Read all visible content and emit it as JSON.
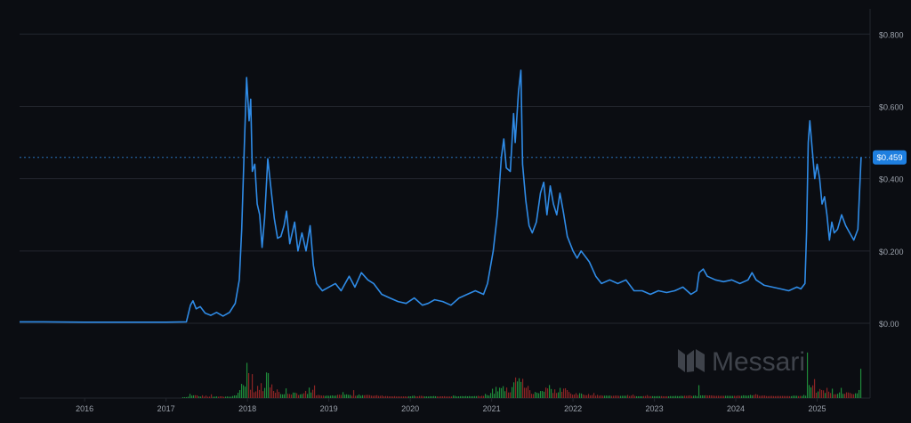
{
  "colors": {
    "background": "#0b0d12",
    "grid": "#23262e",
    "axis_text": "#9aa0aa",
    "line": "#2f8be6",
    "price_badge": "#1e7fe0",
    "volume_up": "#1f8a3a",
    "volume_down": "#8a2424",
    "watermark": "#3f434b"
  },
  "watermark": {
    "text": "Messari",
    "icon": "messari-logo-icon"
  },
  "chart_data": {
    "type": "line",
    "x_ticks": [
      "2016",
      "2017",
      "2018",
      "2019",
      "2020",
      "2021",
      "2022",
      "2023",
      "2024",
      "2025"
    ],
    "y_ticks": [
      "$0.00",
      "$0.200",
      "$0.400",
      "$0.600",
      "$0.800"
    ],
    "y_tick_values": [
      0,
      0.2,
      0.4,
      0.6,
      0.8
    ],
    "ylim": [
      0,
      0.85
    ],
    "xlim": [
      2015.2,
      2025.65
    ],
    "grid": true,
    "current_price": {
      "label": "$0.459",
      "value": 0.459
    },
    "series": [
      {
        "values": [
          [
            2015.2,
            0.004
          ],
          [
            2015.5,
            0.004
          ],
          [
            2016.0,
            0.003
          ],
          [
            2016.5,
            0.003
          ],
          [
            2017.0,
            0.003
          ],
          [
            2017.25,
            0.004
          ],
          [
            2017.3,
            0.05
          ],
          [
            2017.33,
            0.062
          ],
          [
            2017.37,
            0.04
          ],
          [
            2017.42,
            0.046
          ],
          [
            2017.48,
            0.028
          ],
          [
            2017.55,
            0.022
          ],
          [
            2017.62,
            0.03
          ],
          [
            2017.7,
            0.02
          ],
          [
            2017.78,
            0.03
          ],
          [
            2017.85,
            0.055
          ],
          [
            2017.9,
            0.12
          ],
          [
            2017.93,
            0.26
          ],
          [
            2017.96,
            0.48
          ],
          [
            2017.99,
            0.68
          ],
          [
            2018.02,
            0.56
          ],
          [
            2018.04,
            0.62
          ],
          [
            2018.06,
            0.42
          ],
          [
            2018.09,
            0.44
          ],
          [
            2018.12,
            0.33
          ],
          [
            2018.15,
            0.3
          ],
          [
            2018.18,
            0.21
          ],
          [
            2018.21,
            0.29
          ],
          [
            2018.25,
            0.455
          ],
          [
            2018.29,
            0.37
          ],
          [
            2018.33,
            0.29
          ],
          [
            2018.37,
            0.235
          ],
          [
            2018.41,
            0.24
          ],
          [
            2018.45,
            0.27
          ],
          [
            2018.48,
            0.31
          ],
          [
            2018.52,
            0.22
          ],
          [
            2018.58,
            0.28
          ],
          [
            2018.62,
            0.2
          ],
          [
            2018.67,
            0.25
          ],
          [
            2018.72,
            0.2
          ],
          [
            2018.77,
            0.27
          ],
          [
            2018.81,
            0.16
          ],
          [
            2018.85,
            0.11
          ],
          [
            2018.92,
            0.09
          ],
          [
            2019.0,
            0.1
          ],
          [
            2019.08,
            0.11
          ],
          [
            2019.15,
            0.09
          ],
          [
            2019.25,
            0.13
          ],
          [
            2019.32,
            0.1
          ],
          [
            2019.4,
            0.14
          ],
          [
            2019.48,
            0.12
          ],
          [
            2019.55,
            0.11
          ],
          [
            2019.65,
            0.08
          ],
          [
            2019.75,
            0.07
          ],
          [
            2019.85,
            0.06
          ],
          [
            2019.95,
            0.055
          ],
          [
            2020.05,
            0.07
          ],
          [
            2020.15,
            0.05
          ],
          [
            2020.22,
            0.055
          ],
          [
            2020.3,
            0.065
          ],
          [
            2020.4,
            0.06
          ],
          [
            2020.5,
            0.05
          ],
          [
            2020.6,
            0.07
          ],
          [
            2020.7,
            0.08
          ],
          [
            2020.8,
            0.09
          ],
          [
            2020.9,
            0.08
          ],
          [
            2020.95,
            0.11
          ],
          [
            2021.02,
            0.2
          ],
          [
            2021.07,
            0.3
          ],
          [
            2021.12,
            0.46
          ],
          [
            2021.15,
            0.51
          ],
          [
            2021.18,
            0.43
          ],
          [
            2021.23,
            0.42
          ],
          [
            2021.27,
            0.58
          ],
          [
            2021.29,
            0.5
          ],
          [
            2021.33,
            0.64
          ],
          [
            2021.36,
            0.7
          ],
          [
            2021.38,
            0.44
          ],
          [
            2021.42,
            0.34
          ],
          [
            2021.46,
            0.27
          ],
          [
            2021.5,
            0.25
          ],
          [
            2021.55,
            0.28
          ],
          [
            2021.6,
            0.36
          ],
          [
            2021.64,
            0.39
          ],
          [
            2021.68,
            0.3
          ],
          [
            2021.72,
            0.38
          ],
          [
            2021.76,
            0.33
          ],
          [
            2021.8,
            0.3
          ],
          [
            2021.84,
            0.36
          ],
          [
            2021.88,
            0.31
          ],
          [
            2021.93,
            0.24
          ],
          [
            2022.0,
            0.2
          ],
          [
            2022.05,
            0.18
          ],
          [
            2022.1,
            0.2
          ],
          [
            2022.2,
            0.17
          ],
          [
            2022.28,
            0.13
          ],
          [
            2022.35,
            0.11
          ],
          [
            2022.45,
            0.12
          ],
          [
            2022.55,
            0.11
          ],
          [
            2022.65,
            0.12
          ],
          [
            2022.75,
            0.09
          ],
          [
            2022.85,
            0.09
          ],
          [
            2022.95,
            0.08
          ],
          [
            2023.05,
            0.09
          ],
          [
            2023.15,
            0.085
          ],
          [
            2023.25,
            0.09
          ],
          [
            2023.35,
            0.1
          ],
          [
            2023.45,
            0.08
          ],
          [
            2023.52,
            0.09
          ],
          [
            2023.55,
            0.14
          ],
          [
            2023.6,
            0.15
          ],
          [
            2023.65,
            0.13
          ],
          [
            2023.75,
            0.12
          ],
          [
            2023.85,
            0.115
          ],
          [
            2023.95,
            0.12
          ],
          [
            2024.05,
            0.11
          ],
          [
            2024.15,
            0.12
          ],
          [
            2024.2,
            0.14
          ],
          [
            2024.25,
            0.12
          ],
          [
            2024.35,
            0.105
          ],
          [
            2024.45,
            0.1
          ],
          [
            2024.55,
            0.095
          ],
          [
            2024.65,
            0.09
          ],
          [
            2024.75,
            0.1
          ],
          [
            2024.8,
            0.095
          ],
          [
            2024.85,
            0.11
          ],
          [
            2024.87,
            0.25
          ],
          [
            2024.89,
            0.5
          ],
          [
            2024.91,
            0.56
          ],
          [
            2024.94,
            0.48
          ],
          [
            2024.97,
            0.4
          ],
          [
            2025.0,
            0.44
          ],
          [
            2025.03,
            0.4
          ],
          [
            2025.06,
            0.33
          ],
          [
            2025.09,
            0.35
          ],
          [
            2025.12,
            0.3
          ],
          [
            2025.15,
            0.23
          ],
          [
            2025.18,
            0.28
          ],
          [
            2025.21,
            0.25
          ],
          [
            2025.25,
            0.26
          ],
          [
            2025.3,
            0.3
          ],
          [
            2025.35,
            0.27
          ],
          [
            2025.4,
            0.25
          ],
          [
            2025.45,
            0.23
          ],
          [
            2025.5,
            0.26
          ],
          [
            2025.54,
            0.459
          ]
        ]
      }
    ]
  }
}
